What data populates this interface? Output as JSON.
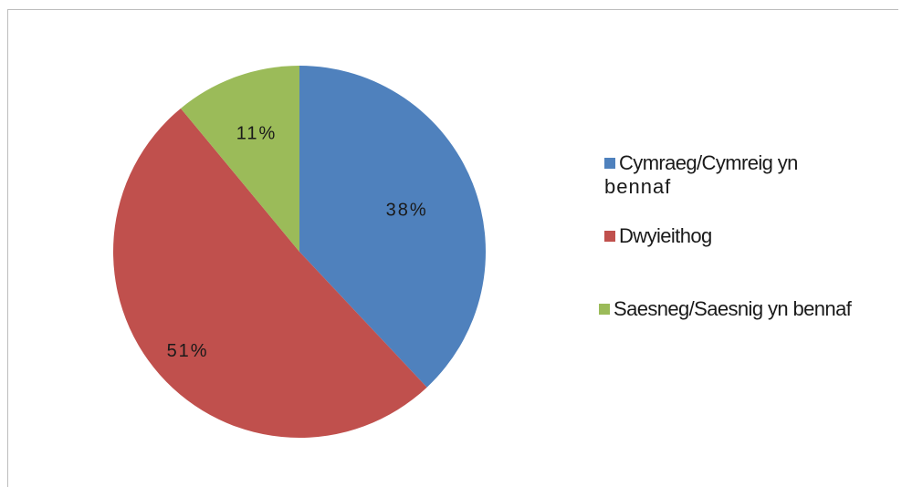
{
  "chart_data": {
    "type": "pie",
    "slices": [
      {
        "label": "Cymraeg/Cymreig yn bennaf",
        "legend_line1": "Cymraeg/Cymreig yn",
        "legend_line2": "bennaf",
        "value": 38,
        "value_label": "38%",
        "color": "#4f81bd"
      },
      {
        "label": "Dwyieithog",
        "legend_line1": "Dwyieithog",
        "legend_line2": "",
        "value": 51,
        "value_label": "51%",
        "color": "#c0504d"
      },
      {
        "label": "Saesneg/Saesnig yn bennaf",
        "legend_line1": "Saesneg/Saesnig yn bennaf",
        "legend_line2": "",
        "value": 11,
        "value_label": "11%",
        "color": "#9bbb59"
      }
    ],
    "legend_position": "right",
    "start": "top",
    "direction": "clockwise"
  }
}
